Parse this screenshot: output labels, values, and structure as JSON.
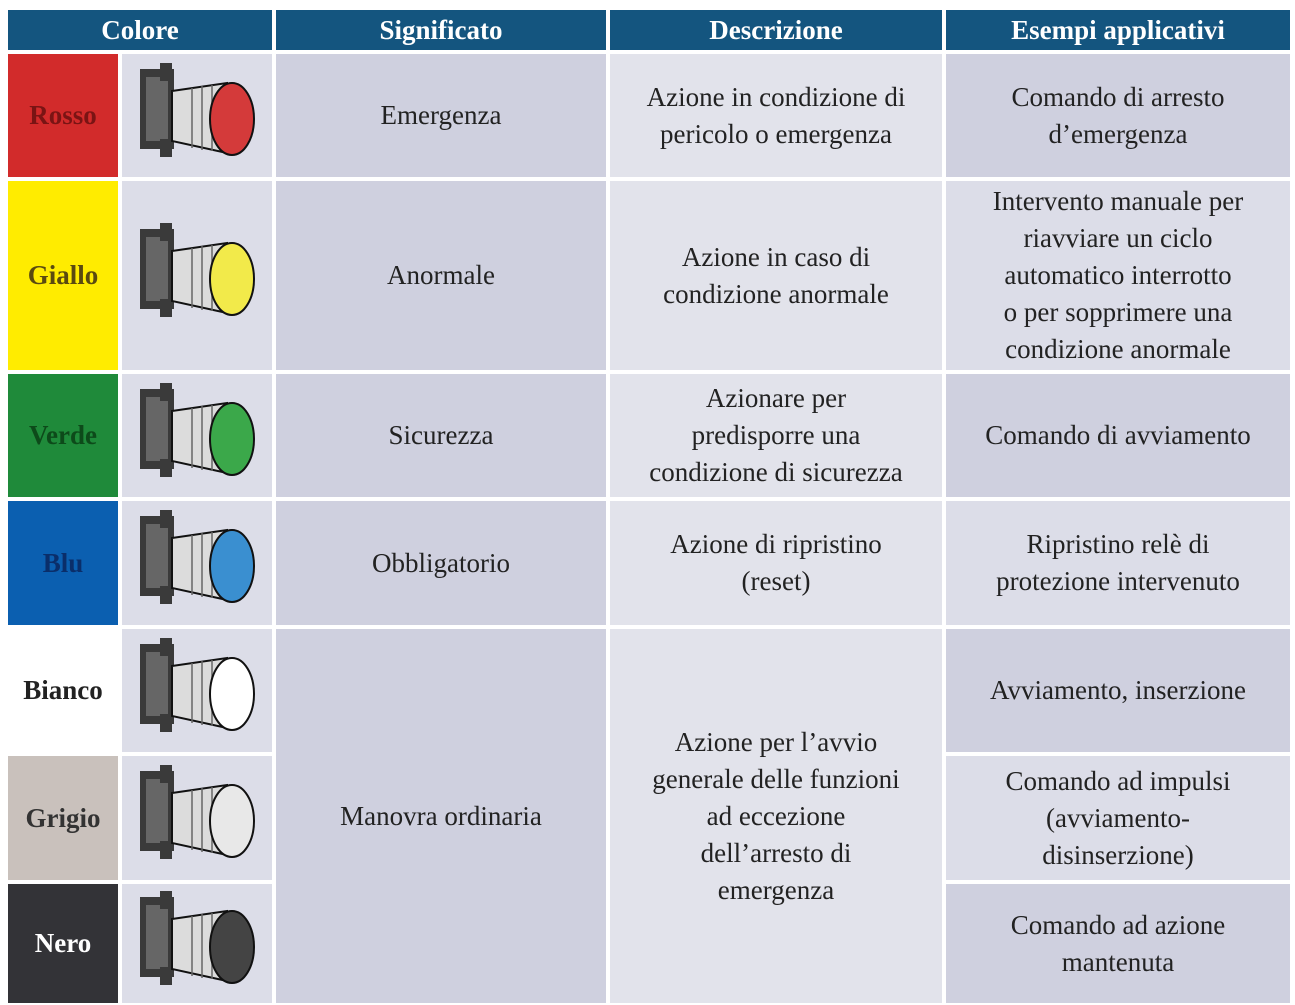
{
  "header": {
    "columns": [
      "Colore",
      "Significato",
      "Descrizione",
      "Esempi applicativi"
    ]
  },
  "rows": [
    {
      "colore": "Rosso",
      "significato": [
        "Emergenza"
      ],
      "descrizione": [
        "Azione in condizione di",
        "pericolo o emergenza"
      ],
      "esempi": [
        "Comando di arresto",
        "d’emergenza"
      ]
    },
    {
      "colore": "Giallo",
      "significato": [
        "Anormale"
      ],
      "descrizione": [
        "Azione in caso di",
        "condizione anormale"
      ],
      "esempi": [
        "Intervento manuale per",
        "riavviare un ciclo",
        "automatico interrotto",
        "o per sopprimere una",
        "condizione anormale"
      ]
    },
    {
      "colore": "Verde",
      "significato": [
        "Sicurezza"
      ],
      "descrizione": [
        "Azionare per",
        "predisporre una",
        "condizione di sicurezza"
      ],
      "esempi": [
        "Comando di avviamento"
      ]
    },
    {
      "colore": "Blu",
      "significato": [
        "Obbligatorio"
      ],
      "descrizione": [
        "Azione di ripristino",
        "(reset)"
      ],
      "esempi": [
        "Ripristino relè di",
        "protezione intervenuto"
      ]
    },
    {
      "colore": "Bianco",
      "significato": [
        "Manovra ordinaria"
      ],
      "descrizione": [
        "Azione per l’avvio",
        "generale delle funzioni",
        "ad eccezione",
        "dell’arresto di",
        "emergenza"
      ],
      "esempi": [
        "Avviamento, inserzione"
      ]
    },
    {
      "colore": "Grigio",
      "esempi": [
        "Comando ad impulsi",
        "(avviamento-",
        "disinserzione)"
      ]
    },
    {
      "colore": "Nero",
      "esempi": [
        "Comando ad azione",
        "mantenuta"
      ]
    }
  ]
}
